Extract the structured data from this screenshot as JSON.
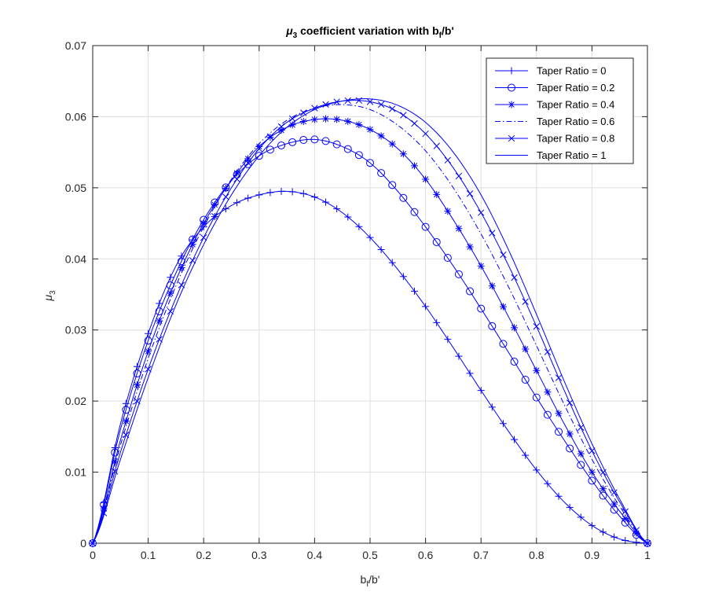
{
  "chart_data": {
    "type": "line",
    "title": {
      "symbol": "μ",
      "sub": "3",
      "text": " coefficient variation with b",
      "sub2": "f",
      "tail": "/b'"
    },
    "xlabel": {
      "base": "b",
      "sub": "f",
      "tail": "/b'"
    },
    "ylabel": {
      "symbol": "μ",
      "sub": "3"
    },
    "xlim": [
      0,
      1
    ],
    "ylim": [
      0,
      0.07
    ],
    "xticks": [
      0,
      0.1,
      0.2,
      0.3,
      0.4,
      0.5,
      0.6,
      0.7,
      0.8,
      0.9,
      1
    ],
    "xtick_labels": [
      "0",
      "0.1",
      "0.2",
      "0.3",
      "0.4",
      "0.5",
      "0.6",
      "0.7",
      "0.8",
      "0.9",
      "1"
    ],
    "yticks": [
      0,
      0.01,
      0.02,
      0.03,
      0.04,
      0.05,
      0.06,
      0.07
    ],
    "ytick_labels": [
      "0",
      "0.01",
      "0.02",
      "0.03",
      "0.04",
      "0.05",
      "0.06",
      "0.07"
    ],
    "grid": true,
    "legend_position": "top-right",
    "line_color": "#0000ff",
    "x": [
      0,
      0.05,
      0.1,
      0.15,
      0.2,
      0.25,
      0.3,
      0.35,
      0.4,
      0.45,
      0.5,
      0.55,
      0.6,
      0.65,
      0.7,
      0.75,
      0.8,
      0.85,
      0.9,
      0.95,
      1
    ],
    "series": [
      {
        "name": "Taper Ratio = 0",
        "marker": "plus",
        "dash": "solid",
        "marker_step": 0.02,
        "values": [
          0,
          0.0168,
          0.0295,
          0.039,
          0.0445,
          0.0475,
          0.049,
          0.0495,
          0.0487,
          0.0465,
          0.043,
          0.0385,
          0.0333,
          0.0275,
          0.0215,
          0.0157,
          0.0103,
          0.0058,
          0.0025,
          0.0006,
          0
        ]
      },
      {
        "name": "Taper Ratio = 0.2",
        "marker": "circle",
        "dash": "solid",
        "marker_step": 0.02,
        "values": [
          0,
          0.016,
          0.0285,
          0.038,
          0.0455,
          0.051,
          0.0545,
          0.0562,
          0.0568,
          0.0558,
          0.0535,
          0.0495,
          0.0445,
          0.039,
          0.033,
          0.0268,
          0.0205,
          0.0145,
          0.0088,
          0.0038,
          0
        ]
      },
      {
        "name": "Taper Ratio = 0.4",
        "marker": "asterisk",
        "dash": "solid",
        "marker_step": 0.02,
        "values": [
          0,
          0.0145,
          0.027,
          0.037,
          0.045,
          0.051,
          0.0558,
          0.0585,
          0.0596,
          0.0595,
          0.0582,
          0.0555,
          0.0512,
          0.0455,
          0.039,
          0.0318,
          0.0243,
          0.0168,
          0.01,
          0.0045,
          0
        ]
      },
      {
        "name": "Taper Ratio = 0.6",
        "marker": "none",
        "dash": "dashdot",
        "marker_step": 0,
        "values": [
          0,
          0.0138,
          0.026,
          0.0362,
          0.0445,
          0.0512,
          0.0562,
          0.0595,
          0.0612,
          0.0617,
          0.061,
          0.0588,
          0.0552,
          0.05,
          0.0435,
          0.036,
          0.0278,
          0.0195,
          0.0118,
          0.0052,
          0
        ]
      },
      {
        "name": "Taper Ratio = 0.8",
        "marker": "cross",
        "dash": "solid",
        "marker_step": 0.02,
        "values": [
          0,
          0.0128,
          0.0245,
          0.0345,
          0.043,
          0.05,
          0.0555,
          0.0592,
          0.0612,
          0.0622,
          0.0621,
          0.0607,
          0.0576,
          0.0528,
          0.0465,
          0.039,
          0.0305,
          0.0215,
          0.013,
          0.0058,
          0
        ]
      },
      {
        "name": "Taper Ratio = 1",
        "marker": "none",
        "dash": "solid",
        "marker_step": 0,
        "values": [
          0,
          0.0118,
          0.0233,
          0.0335,
          0.042,
          0.049,
          0.0545,
          0.0585,
          0.061,
          0.0622,
          0.0625,
          0.0616,
          0.0592,
          0.055,
          0.049,
          0.0412,
          0.0322,
          0.0228,
          0.014,
          0.0062,
          0
        ]
      }
    ]
  }
}
